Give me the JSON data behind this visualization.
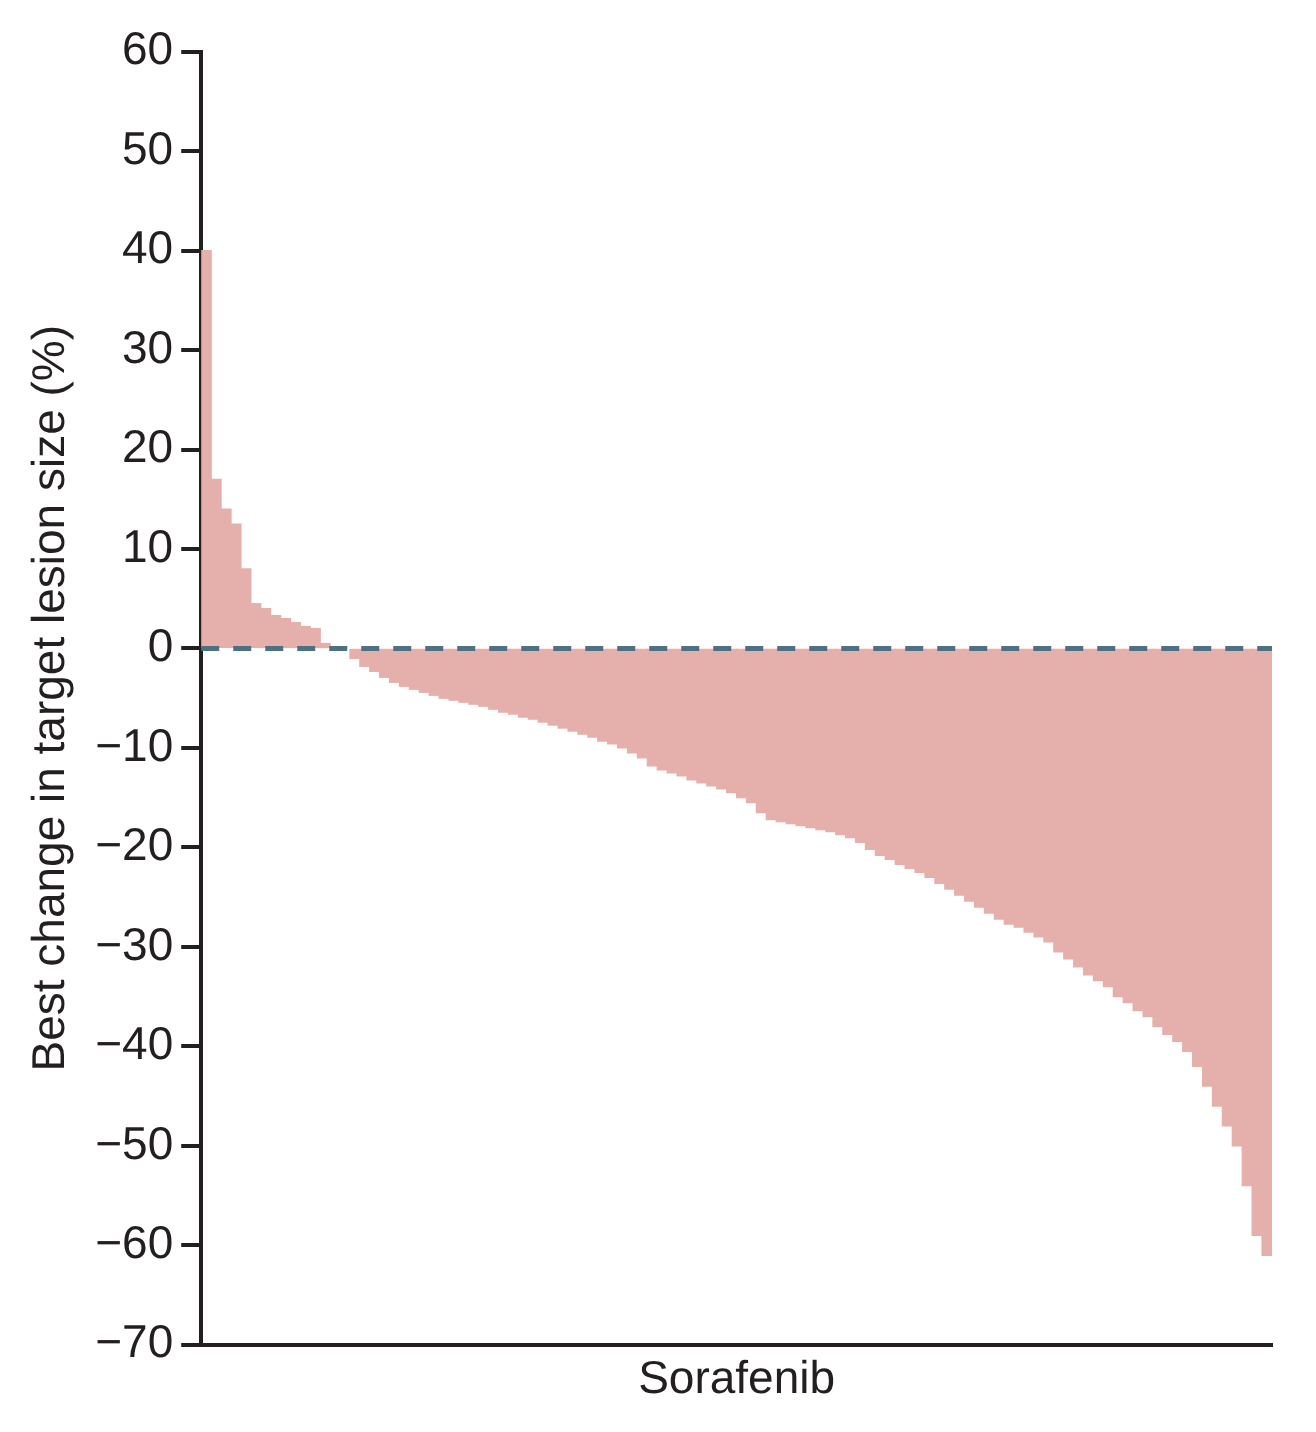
{
  "chart_data": {
    "type": "bar",
    "xlabel": "Sorafenib",
    "ylabel": "Best change in target lesion size (%)",
    "categories": [
      null,
      null,
      null,
      null,
      null,
      null,
      null,
      null,
      null,
      null,
      null,
      null,
      null,
      null,
      null,
      null,
      null,
      null,
      null,
      null,
      null,
      null,
      null,
      null,
      null,
      null,
      null,
      null,
      null,
      null,
      null,
      null,
      null,
      null,
      null,
      null,
      null,
      null,
      null,
      null,
      null,
      null,
      null,
      null,
      null,
      null,
      null,
      null,
      null,
      null,
      null,
      null,
      null,
      null,
      null,
      null,
      null,
      null,
      null,
      null,
      null,
      null,
      null,
      null,
      null,
      null,
      null,
      null,
      null,
      null,
      null,
      null,
      null,
      null,
      null,
      null,
      null,
      null,
      null,
      null,
      null,
      null,
      null,
      null,
      null,
      null,
      null,
      null,
      null,
      null,
      null,
      null,
      null,
      null,
      null,
      null,
      null,
      null,
      null,
      null,
      null,
      null,
      null,
      null,
      null,
      null,
      null,
      null
    ],
    "values": [
      40,
      17,
      14,
      12.5,
      8,
      4.5,
      4,
      3.3,
      3,
      2.6,
      2.2,
      2,
      0.5,
      null,
      null,
      -1,
      -1.8,
      -2.3,
      -2.9,
      -3.4,
      -3.8,
      -4.1,
      -4.4,
      -4.7,
      -5,
      -5.2,
      -5.4,
      -5.6,
      -5.8,
      -6.1,
      -6.4,
      -6.6,
      -6.9,
      -7.1,
      -7.4,
      -7.7,
      -8,
      -8.3,
      -8.6,
      -8.9,
      -9.3,
      -9.6,
      -10,
      -10.5,
      -11,
      -11.8,
      -12.2,
      -12.5,
      -12.8,
      -13.2,
      -13.5,
      -13.8,
      -14.1,
      -14.5,
      -15,
      -15.5,
      -16.5,
      -17.2,
      -17.4,
      -17.6,
      -17.8,
      -18,
      -18.2,
      -18.4,
      -18.7,
      -19,
      -19.5,
      -20.2,
      -20.8,
      -21.2,
      -21.7,
      -22.1,
      -22.5,
      -23,
      -23.6,
      -24.2,
      -24.8,
      -25.4,
      -26,
      -26.6,
      -27.2,
      -27.7,
      -28,
      -28.5,
      -29,
      -29.5,
      -30.5,
      -31.2,
      -32,
      -32.8,
      -33.4,
      -34,
      -35,
      -35.6,
      -36.4,
      -37,
      -38,
      -38.8,
      -39.5,
      -40.5,
      -42,
      -44,
      -46,
      -48,
      -50,
      -54,
      -59,
      -61
    ],
    "color": "#e5b0ab",
    "ylim": [
      -70,
      60
    ],
    "yticks": [
      {
        "value": -70,
        "label": "−70"
      },
      {
        "value": -60,
        "label": "−60"
      },
      {
        "value": -50,
        "label": "−50"
      },
      {
        "value": -40,
        "label": "−40"
      },
      {
        "value": -30,
        "label": "−30"
      },
      {
        "value": -20,
        "label": "−20"
      },
      {
        "value": -10,
        "label": "−10"
      },
      0,
      10,
      20,
      30,
      40,
      50,
      60
    ],
    "ref_lines": [
      {
        "axis": "y",
        "value": 0,
        "color": "#4d7180",
        "line_style": "dashed"
      }
    ]
  }
}
